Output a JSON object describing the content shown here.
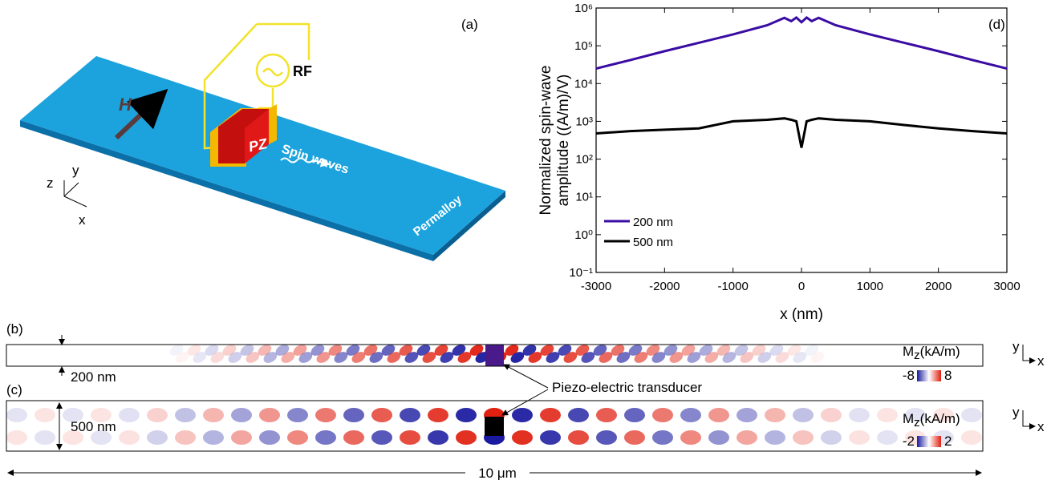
{
  "panel_a": {
    "label": "(a)",
    "rf": "RF",
    "field": "H",
    "piezo": "PZ",
    "spin_waves": "Spin waves",
    "material": "Permalloy",
    "axes": {
      "z": "z",
      "y": "y",
      "x": "x"
    }
  },
  "panel_b": {
    "label": "(b)",
    "width": "200 nm",
    "colorbar": {
      "symbol": "M",
      "subscript": "z",
      "unit": "(kA/m)",
      "min": "-8",
      "max": "8"
    },
    "axes": {
      "y": "y",
      "x": "x"
    }
  },
  "panel_c": {
    "label": "(c)",
    "width": "500 nm",
    "colorbar": {
      "symbol": "M",
      "subscript": "z",
      "unit": "(kA/m)",
      "min": "-2",
      "max": "2"
    },
    "axes": {
      "y": "y",
      "x": "x"
    }
  },
  "transducer": "Piezo-electric transducer",
  "length": "10 μm",
  "chart_data": {
    "type": "line",
    "panel_label": "(d)",
    "x_label": "x (nm)",
    "y_label": [
      "Normalized spin-wave",
      "amplitude ((A/m)/V)"
    ],
    "x": [
      -3000,
      -2500,
      -2000,
      -1500,
      -1000,
      -500,
      -250,
      -150,
      -75,
      0,
      75,
      150,
      250,
      500,
      1000,
      1500,
      2000,
      2500,
      3000
    ],
    "series": [
      {
        "name": "200 nm",
        "color": "#3a0ca3",
        "values": [
          25000,
          42000,
          72000,
          120000,
          200000,
          350000,
          550000,
          450000,
          560000,
          420000,
          560000,
          450000,
          550000,
          350000,
          200000,
          120000,
          72000,
          42000,
          25000
        ]
      },
      {
        "name": "500 nm",
        "color": "#000000",
        "values": [
          480,
          550,
          600,
          650,
          1000,
          1100,
          1200,
          1100,
          1000,
          200,
          1000,
          1100,
          1200,
          1100,
          1000,
          800,
          650,
          550,
          480
        ]
      }
    ],
    "xlim": [
      -3000,
      3000
    ],
    "xticks": [
      -3000,
      -2000,
      -1000,
      0,
      1000,
      2000,
      3000
    ],
    "ylim": [
      0.1,
      1000000
    ],
    "log_y": true,
    "yticks": [
      {
        "value": 0.1,
        "label": "10⁻¹"
      },
      {
        "value": 1,
        "label": "10⁰"
      },
      {
        "value": 10,
        "label": "10¹"
      },
      {
        "value": 100,
        "label": "10²"
      },
      {
        "value": 1000,
        "label": "10³"
      },
      {
        "value": 10000,
        "label": "10⁴"
      },
      {
        "value": 100000,
        "label": "10⁵"
      },
      {
        "value": 1000000,
        "label": "10⁶"
      }
    ],
    "legend": "lower-left"
  }
}
